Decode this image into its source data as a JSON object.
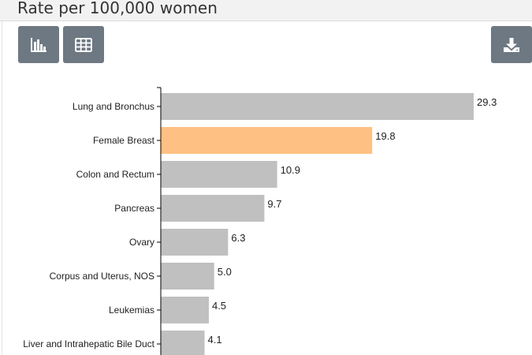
{
  "header": {
    "title": "Rate per 100,000 women"
  },
  "toolbar": {
    "chart_view_icon": "bar-chart-icon",
    "table_view_icon": "table-grid-icon",
    "download_icon": "download-icon"
  },
  "colors": {
    "bar_default": "#c0c0c0",
    "bar_highlight": "#ffc183",
    "button": "#6d7882"
  },
  "chart_data": {
    "type": "bar",
    "orientation": "horizontal",
    "title": "",
    "xlabel": "",
    "ylabel": "",
    "categories": [
      "Lung and Bronchus",
      "Female Breast",
      "Colon and Rectum",
      "Pancreas",
      "Ovary",
      "Corpus and Uterus, NOS",
      "Leukemias",
      "Liver and Intrahepatic Bile Duct"
    ],
    "values": [
      29.3,
      19.8,
      10.9,
      9.7,
      6.3,
      5.0,
      4.5,
      4.1
    ],
    "value_labels": [
      "29.3",
      "19.8",
      "10.9",
      "9.7",
      "6.3",
      "5.0",
      "4.5",
      "4.1"
    ],
    "highlighted_category": "Female Breast",
    "xlim": [
      0,
      29.3
    ],
    "grid": false,
    "legend": "none"
  }
}
